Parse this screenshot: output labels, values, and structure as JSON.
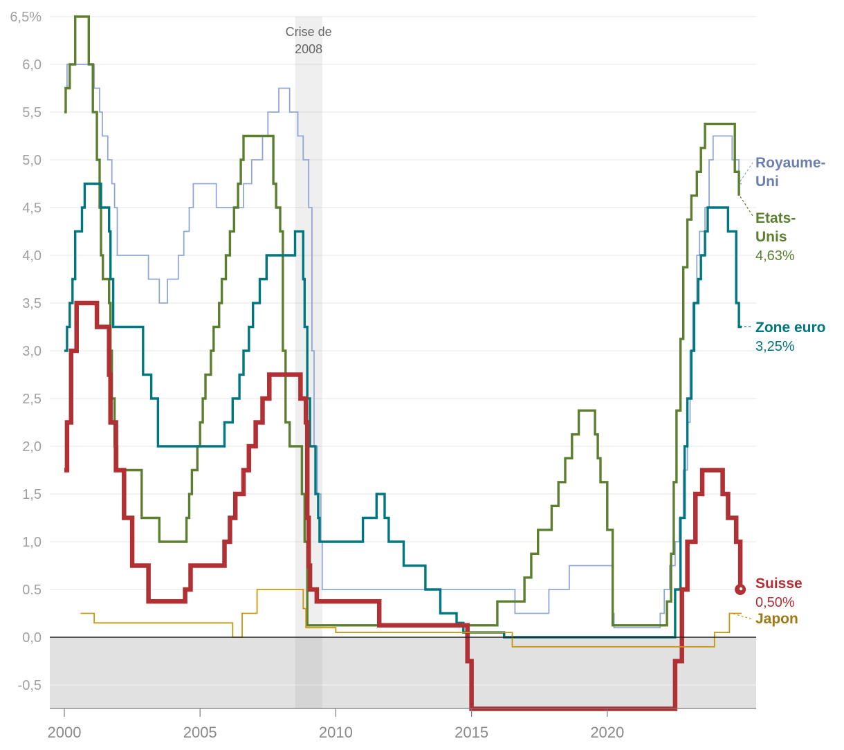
{
  "chart_data": {
    "type": "line",
    "title": "",
    "xlabel": "",
    "ylabel": "",
    "xlim": [
      1999.5,
      2025.0
    ],
    "ylim": [
      -0.75,
      6.5
    ],
    "x_ticks": [
      2000,
      2005,
      2010,
      2015,
      2020
    ],
    "x_tick_labels": [
      "2000",
      "2005",
      "2010",
      "2015",
      "2020"
    ],
    "y_ticks": [
      -0.5,
      0,
      0.5,
      1,
      1.5,
      2,
      2.5,
      3,
      3.5,
      4,
      4.5,
      5,
      5.5,
      6,
      6.5
    ],
    "y_tick_labels": [
      "-0,5",
      "0,0",
      "0.5",
      "1,0",
      "1,5",
      "2,0",
      "2,5",
      "3,0",
      "3,5",
      "4,0",
      "4,5",
      "5,0",
      "5,5",
      "6,0",
      "6,5%"
    ],
    "shaded_region": {
      "x0": 2008.5,
      "x1": 2009.5,
      "label_line1": "Crise de",
      "label_line2": "2008"
    },
    "negative_zone_shaded": true,
    "series": [
      {
        "name": "Royaume-Uni",
        "label_lines": [
          "Royaume-",
          "Uni"
        ],
        "value_label": "",
        "color": "#8fa6d6",
        "label_color": "#6b7fae",
        "end_marker": false,
        "points": [
          [
            2000.0,
            5.75
          ],
          [
            2000.1,
            6.0
          ],
          [
            2001.1,
            5.75
          ],
          [
            2001.3,
            5.5
          ],
          [
            2001.4,
            5.25
          ],
          [
            2001.6,
            5.0
          ],
          [
            2001.75,
            4.75
          ],
          [
            2001.85,
            4.5
          ],
          [
            2001.95,
            4.0
          ],
          [
            2003.1,
            3.75
          ],
          [
            2003.5,
            3.5
          ],
          [
            2003.8,
            3.75
          ],
          [
            2004.2,
            4.0
          ],
          [
            2004.4,
            4.25
          ],
          [
            2004.6,
            4.5
          ],
          [
            2004.75,
            4.75
          ],
          [
            2005.6,
            4.5
          ],
          [
            2006.6,
            4.75
          ],
          [
            2006.9,
            5.0
          ],
          [
            2007.3,
            5.25
          ],
          [
            2007.5,
            5.5
          ],
          [
            2007.9,
            5.75
          ],
          [
            2008.0,
            5.75
          ],
          [
            2008.3,
            5.5
          ],
          [
            2008.6,
            5.25
          ],
          [
            2008.8,
            5.0
          ],
          [
            2009.0,
            4.5
          ],
          [
            2009.12,
            3.0
          ],
          [
            2009.2,
            2.0
          ],
          [
            2009.32,
            1.5
          ],
          [
            2009.45,
            1.0
          ],
          [
            2009.5,
            0.5
          ],
          [
            2016.6,
            0.25
          ],
          [
            2017.85,
            0.5
          ],
          [
            2018.6,
            0.75
          ],
          [
            2020.2,
            0.25
          ],
          [
            2020.25,
            0.1
          ],
          [
            2021.95,
            0.25
          ],
          [
            2022.1,
            0.5
          ],
          [
            2022.3,
            0.75
          ],
          [
            2022.5,
            1.0
          ],
          [
            2022.65,
            1.25
          ],
          [
            2022.8,
            1.75
          ],
          [
            2022.95,
            2.25
          ],
          [
            2023.05,
            3.0
          ],
          [
            2023.15,
            3.5
          ],
          [
            2023.3,
            4.0
          ],
          [
            2023.4,
            4.25
          ],
          [
            2023.6,
            4.5
          ],
          [
            2023.75,
            5.0
          ],
          [
            2023.9,
            5.25
          ],
          [
            2024.6,
            5.0
          ],
          [
            2024.85,
            4.75
          ],
          [
            2024.95,
            4.75
          ]
        ]
      },
      {
        "name": "Etats-Unis",
        "label_lines": [
          "Etats-",
          "Unis"
        ],
        "value_label": "4,63%",
        "color": "#5b7f2e",
        "label_color": "#5b7f2e",
        "end_marker": false,
        "points": [
          [
            2000.0,
            5.5
          ],
          [
            2000.05,
            5.75
          ],
          [
            2000.2,
            6.0
          ],
          [
            2000.4,
            6.5
          ],
          [
            2000.9,
            6.0
          ],
          [
            2001.05,
            5.5
          ],
          [
            2001.2,
            5.0
          ],
          [
            2001.3,
            4.5
          ],
          [
            2001.35,
            4.0
          ],
          [
            2001.42,
            3.75
          ],
          [
            2001.65,
            3.5
          ],
          [
            2001.7,
            3.0
          ],
          [
            2001.75,
            2.5
          ],
          [
            2001.85,
            2.0
          ],
          [
            2001.95,
            1.75
          ],
          [
            2002.85,
            1.25
          ],
          [
            2003.5,
            1.0
          ],
          [
            2004.5,
            1.25
          ],
          [
            2004.6,
            1.5
          ],
          [
            2004.7,
            1.75
          ],
          [
            2004.9,
            2.0
          ],
          [
            2005.0,
            2.25
          ],
          [
            2005.1,
            2.5
          ],
          [
            2005.2,
            2.75
          ],
          [
            2005.4,
            3.0
          ],
          [
            2005.5,
            3.25
          ],
          [
            2005.7,
            3.5
          ],
          [
            2005.8,
            3.75
          ],
          [
            2005.95,
            4.0
          ],
          [
            2006.1,
            4.25
          ],
          [
            2006.25,
            4.5
          ],
          [
            2006.4,
            4.75
          ],
          [
            2006.5,
            5.0
          ],
          [
            2006.6,
            5.25
          ],
          [
            2007.7,
            4.75
          ],
          [
            2007.8,
            4.5
          ],
          [
            2007.95,
            4.25
          ],
          [
            2008.05,
            3.0
          ],
          [
            2008.1,
            3.0
          ],
          [
            2008.15,
            2.25
          ],
          [
            2008.3,
            2.0
          ],
          [
            2008.75,
            1.5
          ],
          [
            2008.85,
            1.0
          ],
          [
            2008.95,
            0.125
          ],
          [
            2015.95,
            0.375
          ],
          [
            2016.95,
            0.625
          ],
          [
            2017.2,
            0.875
          ],
          [
            2017.45,
            1.125
          ],
          [
            2017.95,
            1.375
          ],
          [
            2018.2,
            1.625
          ],
          [
            2018.45,
            1.875
          ],
          [
            2018.7,
            2.125
          ],
          [
            2018.95,
            2.375
          ],
          [
            2019.55,
            2.125
          ],
          [
            2019.65,
            1.875
          ],
          [
            2019.75,
            1.625
          ],
          [
            2020.0,
            1.125
          ],
          [
            2020.2,
            0.125
          ],
          [
            2022.2,
            0.375
          ],
          [
            2022.35,
            0.875
          ],
          [
            2022.45,
            1.625
          ],
          [
            2022.55,
            2.375
          ],
          [
            2022.7,
            3.125
          ],
          [
            2022.8,
            3.875
          ],
          [
            2022.95,
            4.375
          ],
          [
            2023.1,
            4.625
          ],
          [
            2023.3,
            4.875
          ],
          [
            2023.45,
            5.125
          ],
          [
            2023.6,
            5.375
          ],
          [
            2024.7,
            4.875
          ],
          [
            2024.85,
            4.625
          ],
          [
            2024.85,
            4.63
          ]
        ]
      },
      {
        "name": "Zone euro",
        "label_lines": [
          "Zone euro"
        ],
        "value_label": "3,25%",
        "color": "#00767e",
        "label_color": "#00767e",
        "end_marker": false,
        "points": [
          [
            2000.0,
            3.0
          ],
          [
            2000.1,
            3.25
          ],
          [
            2000.2,
            3.5
          ],
          [
            2000.3,
            3.75
          ],
          [
            2000.4,
            4.25
          ],
          [
            2000.65,
            4.5
          ],
          [
            2000.75,
            4.75
          ],
          [
            2001.35,
            4.5
          ],
          [
            2001.65,
            4.25
          ],
          [
            2001.7,
            3.75
          ],
          [
            2001.8,
            3.25
          ],
          [
            2002.9,
            2.75
          ],
          [
            2003.2,
            2.5
          ],
          [
            2003.45,
            2.0
          ],
          [
            2005.9,
            2.25
          ],
          [
            2006.2,
            2.5
          ],
          [
            2006.45,
            2.75
          ],
          [
            2006.6,
            3.0
          ],
          [
            2006.8,
            3.25
          ],
          [
            2006.95,
            3.5
          ],
          [
            2007.2,
            3.75
          ],
          [
            2007.45,
            4.0
          ],
          [
            2008.5,
            4.25
          ],
          [
            2008.8,
            3.75
          ],
          [
            2008.85,
            3.25
          ],
          [
            2008.95,
            2.5
          ],
          [
            2009.05,
            2.0
          ],
          [
            2009.25,
            1.5
          ],
          [
            2009.35,
            1.25
          ],
          [
            2009.4,
            1.0
          ],
          [
            2011.0,
            1.25
          ],
          [
            2011.5,
            1.5
          ],
          [
            2011.8,
            1.25
          ],
          [
            2011.95,
            1.0
          ],
          [
            2012.5,
            0.75
          ],
          [
            2013.3,
            0.5
          ],
          [
            2013.85,
            0.25
          ],
          [
            2014.45,
            0.15
          ],
          [
            2014.7,
            0.05
          ],
          [
            2016.2,
            0.0
          ],
          [
            2022.5,
            0.5
          ],
          [
            2022.7,
            1.25
          ],
          [
            2022.85,
            2.0
          ],
          [
            2022.95,
            2.5
          ],
          [
            2023.1,
            3.0
          ],
          [
            2023.2,
            3.5
          ],
          [
            2023.35,
            3.75
          ],
          [
            2023.45,
            4.0
          ],
          [
            2023.6,
            4.25
          ],
          [
            2023.7,
            4.5
          ],
          [
            2024.45,
            4.25
          ],
          [
            2024.75,
            3.5
          ],
          [
            2024.85,
            3.25
          ],
          [
            2024.95,
            3.25
          ]
        ]
      },
      {
        "name": "Suisse",
        "label_lines": [
          "Suisse"
        ],
        "value_label": "0,50%",
        "color": "#b03034",
        "label_color": "#b03034",
        "end_marker": true,
        "points": [
          [
            2000.0,
            1.75
          ],
          [
            2000.1,
            2.25
          ],
          [
            2000.25,
            3.0
          ],
          [
            2000.45,
            3.5
          ],
          [
            2001.2,
            3.25
          ],
          [
            2001.65,
            2.75
          ],
          [
            2001.7,
            2.25
          ],
          [
            2001.9,
            1.75
          ],
          [
            2002.2,
            1.25
          ],
          [
            2002.5,
            0.75
          ],
          [
            2003.1,
            0.375
          ],
          [
            2004.45,
            0.5
          ],
          [
            2004.65,
            0.75
          ],
          [
            2005.9,
            1.0
          ],
          [
            2006.1,
            1.25
          ],
          [
            2006.3,
            1.5
          ],
          [
            2006.6,
            1.75
          ],
          [
            2006.8,
            2.0
          ],
          [
            2007.05,
            2.25
          ],
          [
            2007.3,
            2.5
          ],
          [
            2007.55,
            2.75
          ],
          [
            2008.7,
            2.5
          ],
          [
            2008.9,
            2.25
          ],
          [
            2008.95,
            1.25
          ],
          [
            2009.0,
            0.75
          ],
          [
            2009.05,
            0.5
          ],
          [
            2009.3,
            0.375
          ],
          [
            2011.6,
            0.125
          ],
          [
            2014.85,
            -0.25
          ],
          [
            2015.0,
            -0.75
          ],
          [
            2022.5,
            -0.25
          ],
          [
            2022.75,
            0.5
          ],
          [
            2022.95,
            1.0
          ],
          [
            2023.25,
            1.5
          ],
          [
            2023.5,
            1.75
          ],
          [
            2024.25,
            1.5
          ],
          [
            2024.45,
            1.25
          ],
          [
            2024.75,
            1.0
          ],
          [
            2024.9,
            0.5
          ]
        ]
      },
      {
        "name": "Japon",
        "label_lines": [
          "Japon"
        ],
        "value_label": "",
        "color": "#c9960c",
        "label_color": "#a07812",
        "end_marker": false,
        "points": [
          [
            2000.6,
            0.25
          ],
          [
            2001.1,
            0.15
          ],
          [
            2006.2,
            0.0
          ],
          [
            2006.55,
            0.25
          ],
          [
            2007.1,
            0.5
          ],
          [
            2008.8,
            0.3
          ],
          [
            2008.9,
            0.1
          ],
          [
            2010.0,
            0.05
          ],
          [
            2016.5,
            -0.1
          ],
          [
            2023.95,
            0.05
          ],
          [
            2024.5,
            0.25
          ],
          [
            2024.95,
            0.25
          ]
        ]
      }
    ]
  }
}
